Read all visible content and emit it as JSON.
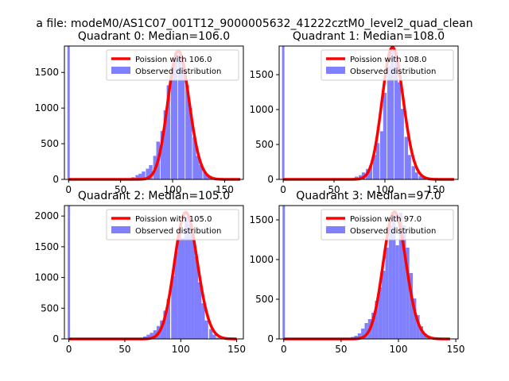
{
  "figure": {
    "suptitle": "a file: modeM0/AS1C07_001T12_9000005632_41222cztM0_level2_quad_clean"
  },
  "colors": {
    "bars": "#8080ff",
    "poisson": "#ff0000",
    "axes": "#000000",
    "legend_border": "#cccccc"
  },
  "chart_data": [
    {
      "type": "bar",
      "title": "Quadrant 0: Median=106.0",
      "xlim": [
        -4,
        168
      ],
      "ylim": [
        0,
        1870
      ],
      "xticks": [
        0,
        50,
        100,
        150
      ],
      "yticks": [
        0,
        500,
        1000,
        1500
      ],
      "median": 106,
      "bin_width": 3.4,
      "zero_bar": {
        "x": 0,
        "height": 1870
      },
      "hist": {
        "x": [
          58,
          62,
          66,
          69,
          72,
          76,
          79,
          83,
          86,
          90,
          93,
          96,
          100,
          103,
          107,
          110,
          114,
          117,
          121,
          124,
          127,
          131,
          134,
          138
        ],
        "values": [
          5,
          30,
          60,
          80,
          110,
          150,
          200,
          330,
          530,
          680,
          970,
          1320,
          1580,
          1780,
          1750,
          1590,
          1320,
          1000,
          590,
          330,
          200,
          110,
          50,
          10
        ]
      },
      "poisson": {
        "lambda": 106,
        "peak": 1800,
        "x_range": [
          0,
          165
        ]
      },
      "legend": [
        {
          "label": "Poission with 106.0",
          "kind": "line"
        },
        {
          "label": "Observed distribution",
          "kind": "patch"
        }
      ]
    },
    {
      "type": "bar",
      "title": "Quadrant 1: Median=108.0",
      "xlim": [
        -4,
        172
      ],
      "ylim": [
        0,
        1910
      ],
      "xticks": [
        0,
        50,
        100,
        150
      ],
      "yticks": [
        0,
        500,
        1000,
        1500
      ],
      "median": 108,
      "bin_width": 3.4,
      "zero_bar": {
        "x": 0,
        "height": 1910
      },
      "hist": {
        "x": [
          65,
          69,
          72,
          76,
          79,
          83,
          86,
          90,
          93,
          97,
          100,
          104,
          107,
          111,
          114,
          117,
          121,
          124,
          128,
          131,
          135,
          138,
          142
        ],
        "values": [
          5,
          20,
          40,
          60,
          100,
          150,
          200,
          350,
          520,
          690,
          1240,
          1620,
          1850,
          1820,
          1390,
          1010,
          610,
          350,
          190,
          100,
          50,
          30,
          10
        ]
      },
      "poisson": {
        "lambda": 108,
        "peak": 1890,
        "x_range": [
          0,
          168
        ]
      },
      "legend": [
        {
          "label": "Poission with 108.0",
          "kind": "line"
        },
        {
          "label": "Observed distribution",
          "kind": "patch"
        }
      ]
    },
    {
      "type": "bar",
      "title": "Quadrant 2: Median=105.0",
      "xlim": [
        -4,
        156
      ],
      "ylim": [
        0,
        2170
      ],
      "xticks": [
        0,
        50,
        100,
        150
      ],
      "yticks": [
        0,
        500,
        1000,
        1500,
        2000
      ],
      "median": 105,
      "bin_width": 3.1,
      "zero_bar": {
        "x": 0,
        "height": 2170
      },
      "hist": {
        "x": [
          62,
          65,
          68,
          71,
          74,
          77,
          80,
          83,
          86,
          89,
          93,
          96,
          99,
          102,
          105,
          108,
          111,
          114,
          117,
          120,
          123,
          127,
          130,
          133
        ],
        "values": [
          5,
          20,
          40,
          70,
          100,
          140,
          210,
          300,
          460,
          650,
          1020,
          1420,
          1770,
          1640,
          1990,
          1870,
          1690,
          1340,
          920,
          580,
          300,
          160,
          70,
          20
        ]
      },
      "poisson": {
        "lambda": 105,
        "peak": 2060,
        "x_range": [
          0,
          150
        ]
      },
      "legend": [
        {
          "label": "Poission with 105.0",
          "kind": "line"
        },
        {
          "label": "Observed distribution",
          "kind": "patch"
        }
      ]
    },
    {
      "type": "bar",
      "title": "Quadrant 3: Median=97.0",
      "xlim": [
        -4,
        152
      ],
      "ylim": [
        0,
        1680
      ],
      "xticks": [
        0,
        50,
        100,
        150
      ],
      "yticks": [
        0,
        500,
        1000,
        1500
      ],
      "median": 97,
      "bin_width": 3.0,
      "zero_bar": {
        "x": 0,
        "height": 1680
      },
      "hist": {
        "x": [
          57,
          60,
          63,
          66,
          69,
          72,
          75,
          78,
          81,
          84,
          87,
          90,
          93,
          96,
          99,
          102,
          105,
          108,
          111,
          114,
          117,
          120,
          123,
          126
        ],
        "values": [
          5,
          25,
          40,
          70,
          130,
          200,
          250,
          330,
          480,
          650,
          860,
          1150,
          1430,
          1570,
          1180,
          1590,
          1430,
          1150,
          830,
          510,
          300,
          160,
          70,
          20
        ]
      },
      "poisson": {
        "lambda": 97,
        "peak": 1600,
        "x_range": [
          0,
          145
        ]
      },
      "legend": [
        {
          "label": "Poission with 97.0",
          "kind": "line"
        },
        {
          "label": "Observed distribution",
          "kind": "patch"
        }
      ]
    }
  ]
}
